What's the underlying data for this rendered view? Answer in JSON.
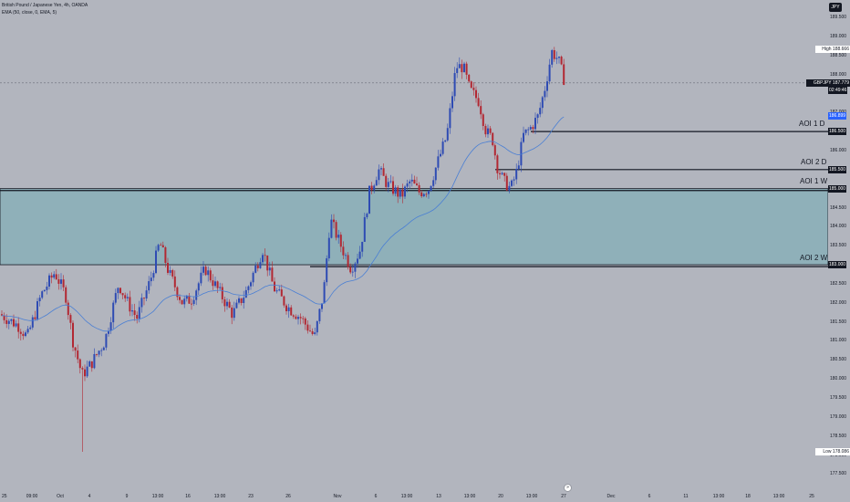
{
  "legend": {
    "title": "British Pound / Japanese Yen, 4h, OANDA",
    "indicator": "EMA (50, close, 0, EMA, 5)"
  },
  "currency": "JPY",
  "price_axis": {
    "ticks": [
      "189.500",
      "189.000",
      "188.500",
      "188.000",
      "187.500",
      "187.000",
      "186.500",
      "186.000",
      "185.500",
      "185.000",
      "184.500",
      "184.000",
      "183.500",
      "183.000",
      "182.500",
      "182.000",
      "181.500",
      "181.000",
      "180.500",
      "180.000",
      "179.500",
      "179.000",
      "178.500",
      "178.000",
      "177.500"
    ],
    "high_label": "High",
    "high_value": "188.666",
    "low_label": "Low",
    "low_value": "178.086",
    "symbol_tag": "GBPJPY",
    "last_price": "187.779",
    "countdown": "02:49:46",
    "ema_value": "186.899",
    "level_tags": [
      "186.500",
      "185.500",
      "185.000",
      "183.000"
    ]
  },
  "time_axis": {
    "ticks": [
      "25",
      "09:00",
      "Oct",
      "4",
      "9",
      "13:00",
      "16",
      "13:00",
      "23",
      "26",
      "Nov",
      "6",
      "13:00",
      "13",
      "13:00",
      "20",
      "13:00",
      "27",
      "Dec",
      "6",
      "11",
      "13:00",
      "18",
      "13:00",
      "25"
    ]
  },
  "levels": {
    "aoi_1_d": "AOI 1 D",
    "aoi_2_d": "AOI 2 D",
    "aoi_1_w": "AOI 1 W",
    "aoi_2_w": "AOI 2 W"
  },
  "colors": {
    "background": "#b2b5be",
    "zone_fill": "#8fb0b9",
    "bull_candle": "#2e4bb3",
    "bear_candle": "#b22833",
    "ema_line": "#4a7fd4",
    "level_line": "#131722"
  },
  "goto_icon": "go-to-realtime-icon"
}
